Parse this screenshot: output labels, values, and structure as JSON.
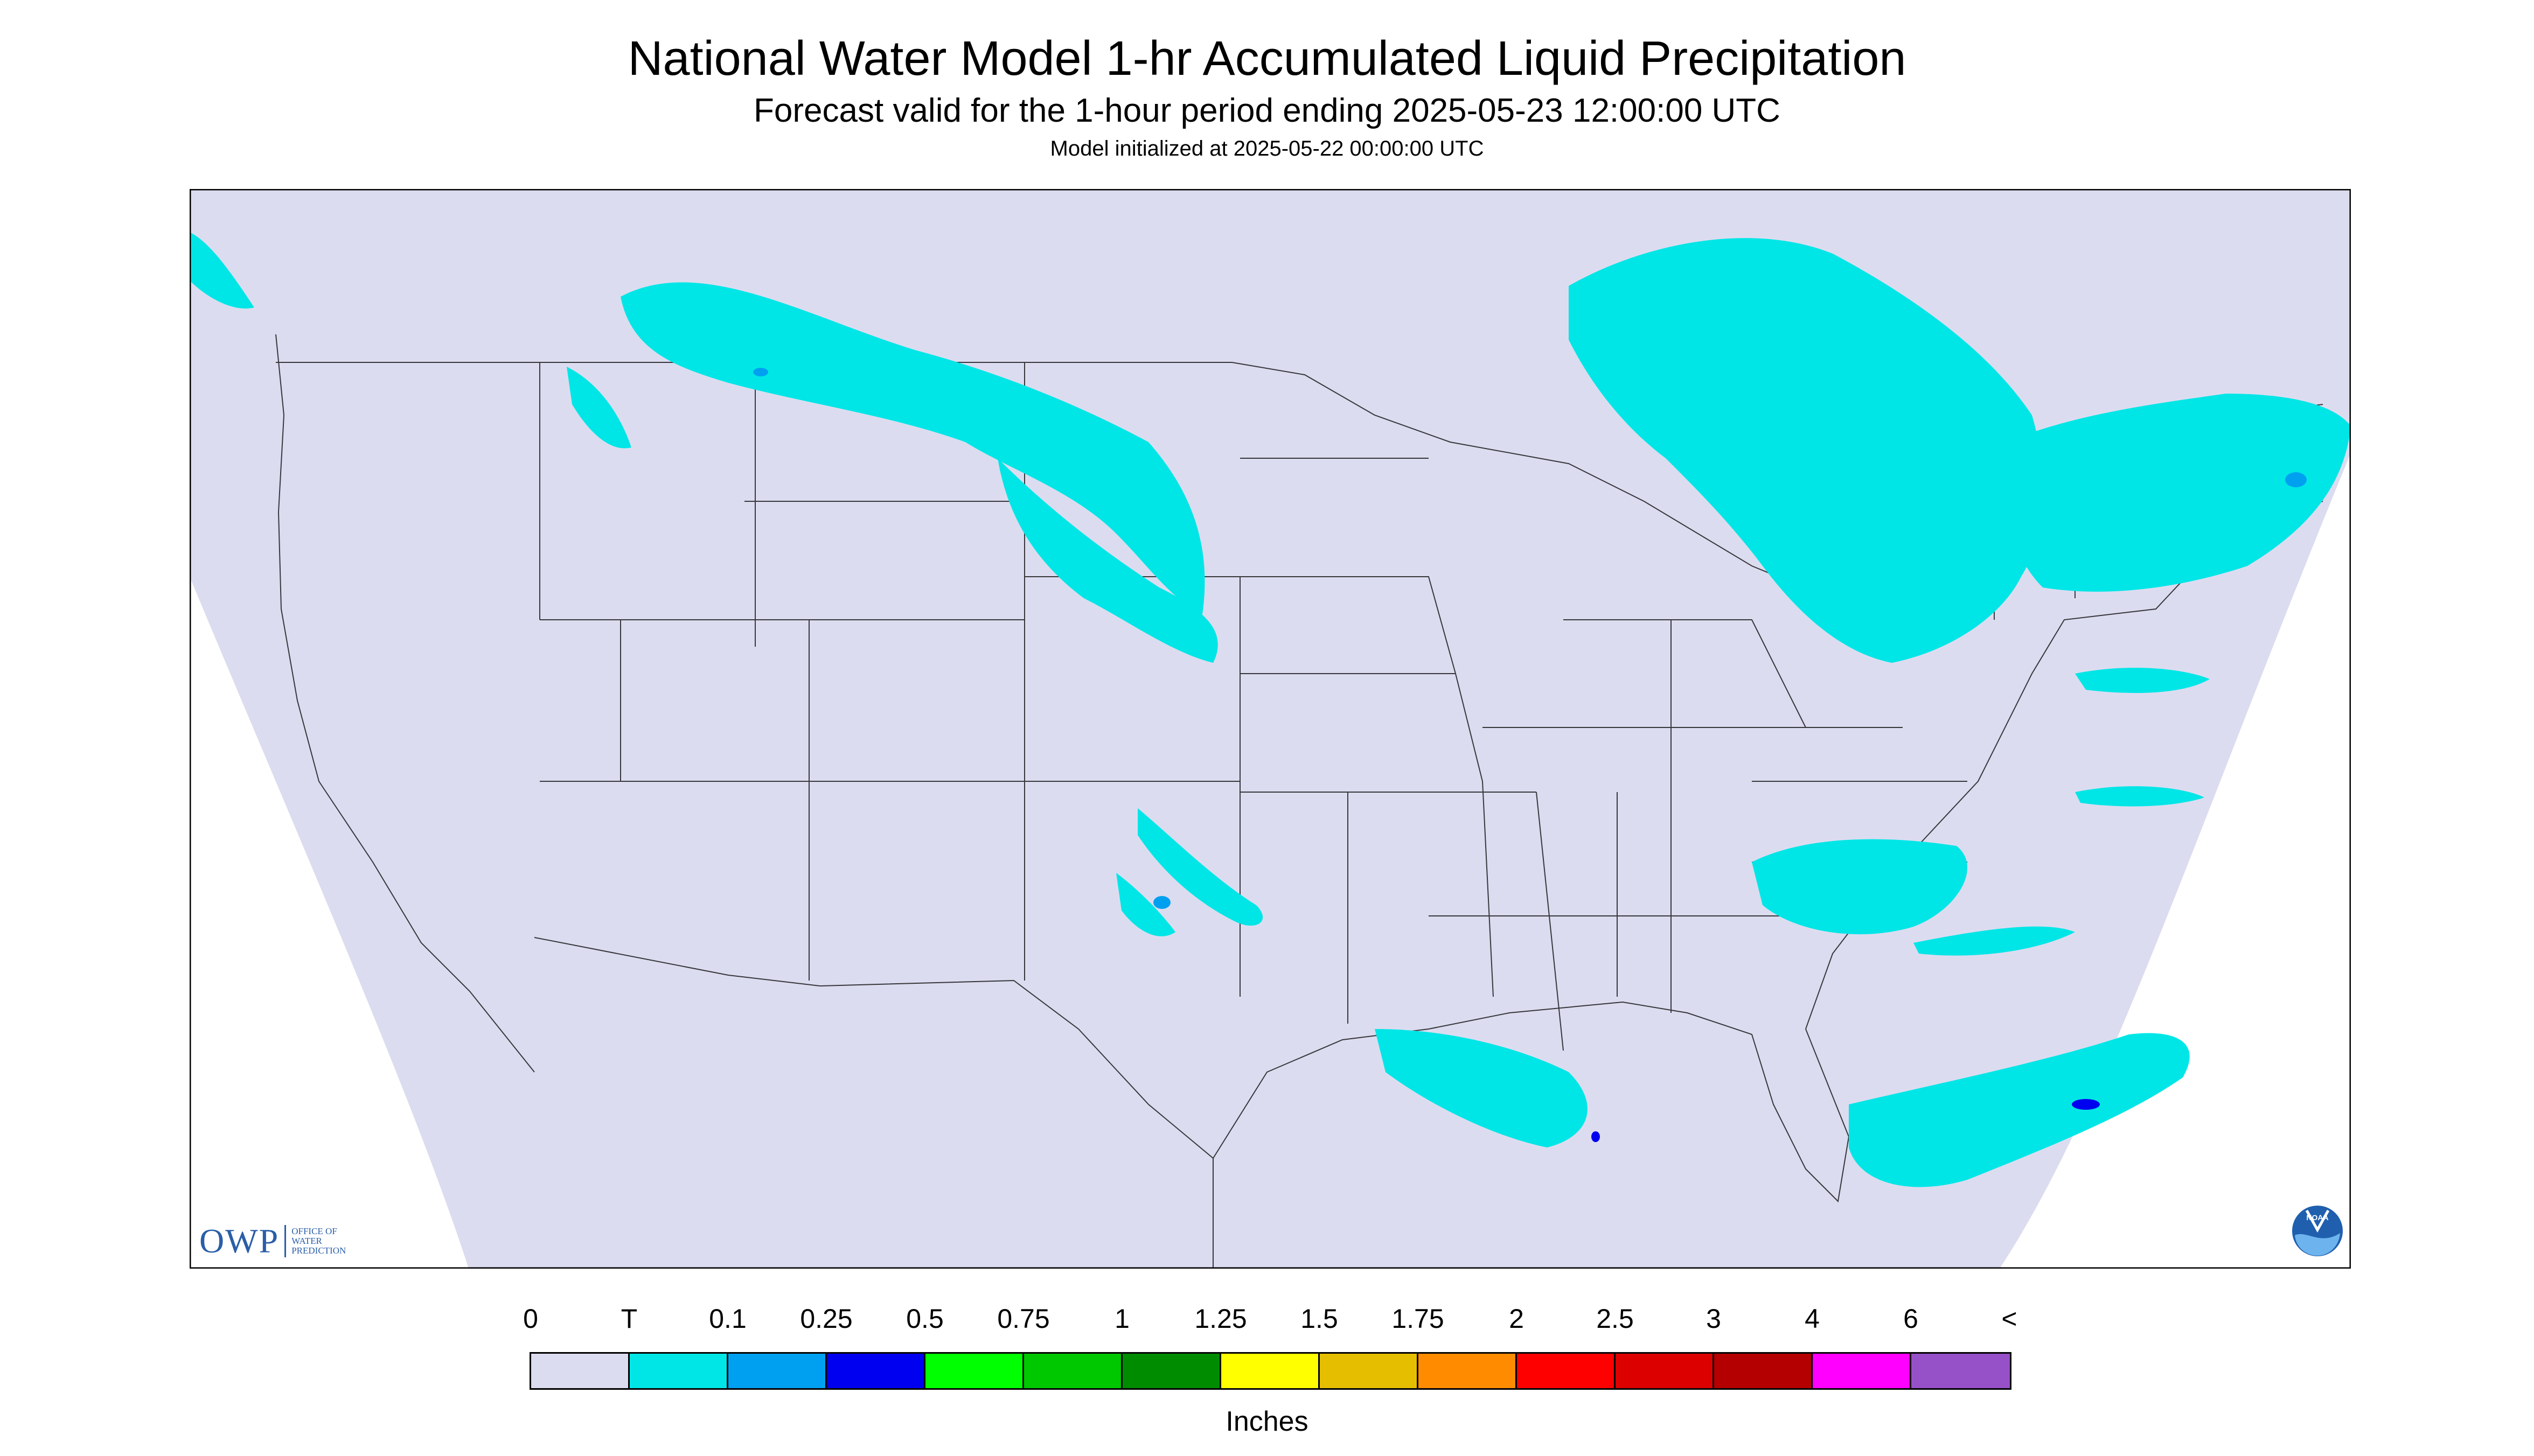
{
  "header": {
    "title": "National Water Model 1-hr Accumulated Liquid Precipitation",
    "subtitle": "Forecast valid for the 1-hour period ending 2025-05-23 12:00:00 UTC",
    "init": "Model initialized at 2025-05-22 00:00:00 UTC"
  },
  "legend": {
    "labels": [
      "0",
      "T",
      "0.1",
      "0.25",
      "0.5",
      "0.75",
      "1",
      "1.25",
      "1.5",
      "1.75",
      "2",
      "2.5",
      "3",
      "4",
      "6",
      "<"
    ],
    "colors": [
      "#dcdcf0",
      "#00e6e6",
      "#00a0f0",
      "#0000f0",
      "#00ff00",
      "#00c800",
      "#008c00",
      "#ffff00",
      "#e6be00",
      "#ff8c00",
      "#ff0000",
      "#dc0000",
      "#b40000",
      "#ff00ff",
      "#9650c8"
    ],
    "units": "Inches"
  },
  "branding": {
    "owp_mark": "OWP",
    "owp_text": [
      "OFFICE OF",
      "WATER",
      "PREDICTION"
    ],
    "noaa_text": "NOAA"
  },
  "colors": {
    "background": "#dcdcf0",
    "domain_outside": "#ffffff",
    "borders": "#000000",
    "precip_trace": "#00e6e6",
    "precip_01": "#00a0f0",
    "precip_025": "#0000f0"
  }
}
